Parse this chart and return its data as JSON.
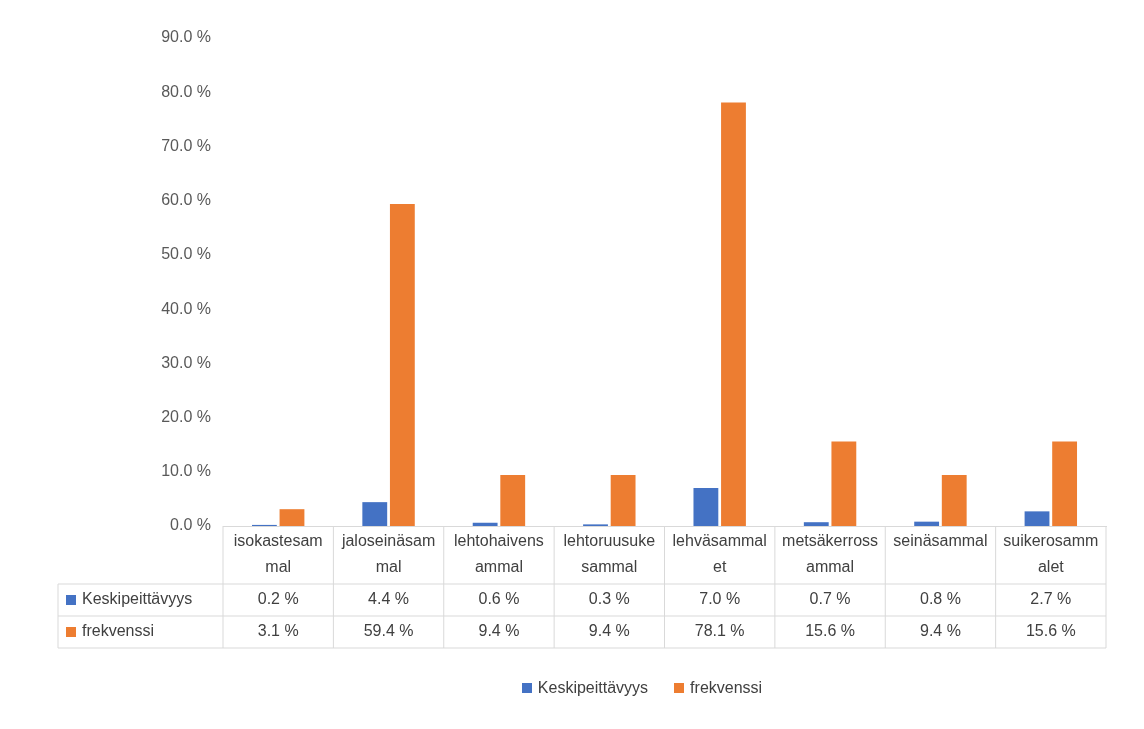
{
  "chart_data": {
    "type": "bar",
    "categories": [
      "isokastesammal",
      "jaloseinäsammal",
      "lehtohaivensammal",
      "lehtoruusukesammal",
      "lehväsammalet",
      "metsäkerrossammal",
      "seinäsammal",
      "suikerosammalet"
    ],
    "series": [
      {
        "name": "Keskipeittävyys",
        "color": "#4472c4",
        "values": [
          0.2,
          4.4,
          0.6,
          0.3,
          7.0,
          0.7,
          0.8,
          2.7
        ],
        "value_labels": [
          "0.2 %",
          "4.4 %",
          "0.6 %",
          "0.3 %",
          "7.0 %",
          "0.7 %",
          "0.8 %",
          "2.7 %"
        ]
      },
      {
        "name": "frekvenssi",
        "color": "#ed7d31",
        "values": [
          3.1,
          59.4,
          9.4,
          9.4,
          78.1,
          15.6,
          9.4,
          15.6
        ],
        "value_labels": [
          "3.1 %",
          "59.4 %",
          "9.4 %",
          "9.4 %",
          "78.1 %",
          "15.6 %",
          "9.4 %",
          "15.6 %"
        ]
      }
    ],
    "ylim": [
      0,
      90
    ],
    "yticks": [
      {
        "value": 0,
        "label": "0.0 %"
      },
      {
        "value": 10,
        "label": "10.0 %"
      },
      {
        "value": 20,
        "label": "20.0 %"
      },
      {
        "value": 30,
        "label": "30.0 %"
      },
      {
        "value": 40,
        "label": "40.0 %"
      },
      {
        "value": 50,
        "label": "50.0 %"
      },
      {
        "value": 60,
        "label": "60.0 %"
      },
      {
        "value": 70,
        "label": "70.0 %"
      },
      {
        "value": 80,
        "label": "80.0 %"
      },
      {
        "value": 90,
        "label": "90.0 %"
      }
    ],
    "legend": "bottom"
  }
}
